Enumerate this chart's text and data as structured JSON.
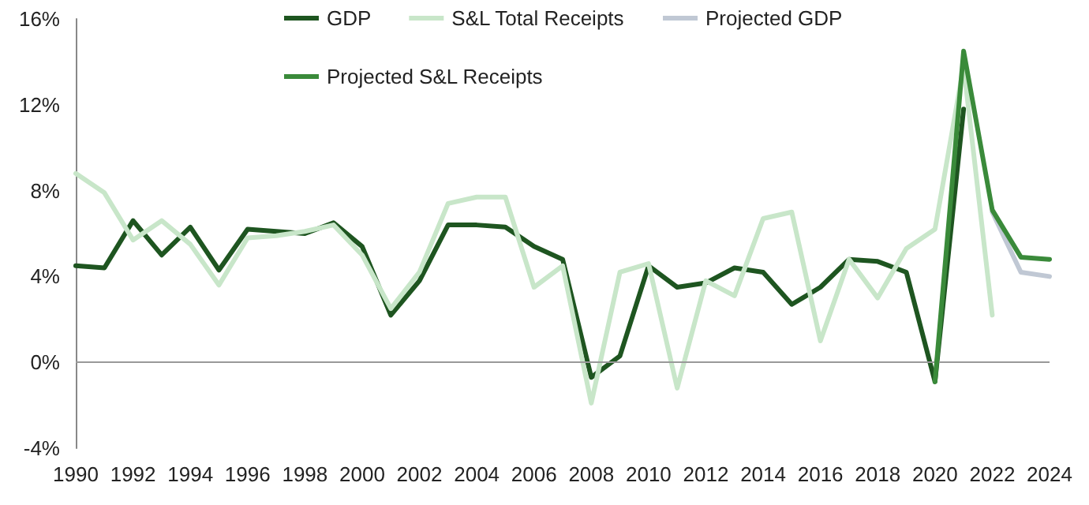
{
  "chart_data": {
    "type": "line",
    "x": [
      1990,
      1991,
      1992,
      1993,
      1994,
      1995,
      1996,
      1997,
      1998,
      1999,
      2000,
      2001,
      2002,
      2003,
      2004,
      2005,
      2006,
      2007,
      2008,
      2009,
      2010,
      2011,
      2012,
      2013,
      2014,
      2015,
      2016,
      2017,
      2018,
      2019,
      2020,
      2021,
      2022
    ],
    "series": [
      {
        "name": "GDP",
        "color": "#1e5520",
        "values": [
          4.5,
          4.4,
          6.6,
          5.0,
          6.3,
          4.3,
          6.2,
          6.1,
          6.0,
          6.5,
          5.4,
          2.2,
          3.8,
          6.4,
          6.4,
          6.3,
          5.4,
          4.8,
          -0.7,
          0.3,
          4.5,
          3.5,
          3.7,
          4.4,
          4.2,
          2.7,
          3.5,
          4.8,
          4.7,
          4.2,
          -0.9,
          11.8,
          null
        ]
      },
      {
        "name": "S&L Total Receipts",
        "color": "#c8e6c9",
        "values": [
          8.8,
          7.9,
          5.7,
          6.6,
          5.5,
          3.6,
          5.8,
          5.9,
          6.1,
          6.4,
          5.0,
          2.5,
          4.2,
          7.4,
          7.7,
          7.7,
          3.5,
          4.5,
          -1.9,
          4.2,
          4.6,
          -1.2,
          3.8,
          3.1,
          6.7,
          7.0,
          1.0,
          4.8,
          3.0,
          5.3,
          6.2,
          13.8,
          2.2
        ]
      },
      {
        "name": "Projected GDP",
        "color": "#c0c8d4",
        "x": [
          2022,
          2023,
          2024
        ],
        "values": [
          7.0,
          4.2,
          4.0
        ]
      },
      {
        "name": "Projected S&L Receipts",
        "color": "#3a8a3a",
        "x": [
          2020,
          2021,
          2022,
          2023,
          2024
        ],
        "values": [
          -0.9,
          14.5,
          7.1,
          4.9,
          4.8
        ]
      }
    ],
    "xlim": [
      1990,
      2024
    ],
    "xticks": [
      1990,
      1992,
      1994,
      1996,
      1998,
      2000,
      2002,
      2004,
      2006,
      2008,
      2010,
      2012,
      2014,
      2016,
      2018,
      2020,
      2022,
      2024
    ],
    "ylim": [
      -4,
      16
    ],
    "yticks": [
      {
        "value": -4,
        "label": "-4%"
      },
      {
        "value": 0,
        "label": "0%"
      },
      {
        "value": 4,
        "label": "4%"
      },
      {
        "value": 8,
        "label": "8%"
      },
      {
        "value": 12,
        "label": "12%"
      },
      {
        "value": 16,
        "label": "16%"
      }
    ],
    "ref_lines": [
      {
        "axis": "y",
        "value": 0,
        "color": "#999999"
      }
    ],
    "grid": false,
    "legend": "top left",
    "marker": "none",
    "line_style": "solid"
  }
}
